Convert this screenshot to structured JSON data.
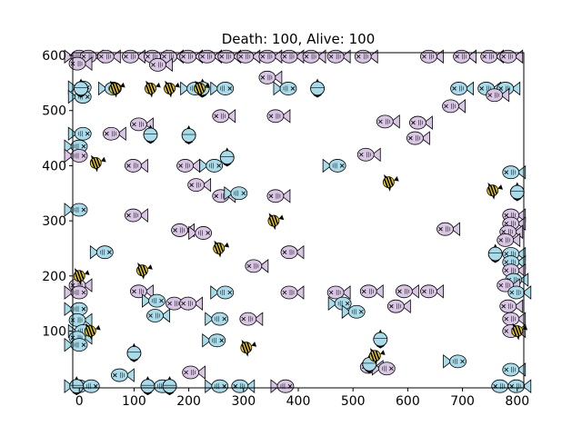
{
  "chart_data": {
    "type": "scatter",
    "title": "Death: 100, Alive: 100",
    "xlabel": "",
    "ylabel": "",
    "xlim": [
      -12,
      812
    ],
    "ylim": [
      -3,
      605
    ],
    "x_ticks": [
      0,
      100,
      200,
      300,
      400,
      500,
      600,
      700,
      800
    ],
    "y_ticks": [
      100,
      200,
      300,
      400,
      500,
      600
    ],
    "grid": false,
    "colors": {
      "fish_light_blue": "#a8dcea",
      "fish_lavender": "#d8c6e4",
      "angelfish_yellow": "#f0d000",
      "outline": "#000000"
    },
    "series": [
      {
        "marker": "fish",
        "points": [
          {
            "x": -2,
            "y": 598,
            "c": "p",
            "d": "l"
          },
          {
            "x": 18,
            "y": 598,
            "c": "p",
            "d": "r"
          },
          {
            "x": 50,
            "y": 598,
            "c": "p",
            "d": "r"
          },
          {
            "x": 95,
            "y": 598,
            "c": "p",
            "d": "r"
          },
          {
            "x": 135,
            "y": 598,
            "c": "p",
            "d": "r"
          },
          {
            "x": 165,
            "y": 598,
            "c": "p",
            "d": "r"
          },
          {
            "x": 200,
            "y": 598,
            "c": "p",
            "d": "r"
          },
          {
            "x": 235,
            "y": 598,
            "c": "p",
            "d": "r"
          },
          {
            "x": 270,
            "y": 598,
            "c": "p",
            "d": "r"
          },
          {
            "x": 305,
            "y": 598,
            "c": "p",
            "d": "r"
          },
          {
            "x": 345,
            "y": 598,
            "c": "p",
            "d": "r"
          },
          {
            "x": 385,
            "y": 598,
            "c": "p",
            "d": "r"
          },
          {
            "x": 425,
            "y": 598,
            "c": "p",
            "d": "r"
          },
          {
            "x": 470,
            "y": 598,
            "c": "p",
            "d": "r"
          },
          {
            "x": 520,
            "y": 598,
            "c": "p",
            "d": "r"
          },
          {
            "x": 640,
            "y": 598,
            "c": "p",
            "d": "r"
          },
          {
            "x": 700,
            "y": 598,
            "c": "p",
            "d": "r"
          },
          {
            "x": 750,
            "y": 598,
            "c": "p",
            "d": "r"
          },
          {
            "x": 785,
            "y": 598,
            "c": "p",
            "d": "r"
          },
          {
            "x": -2,
            "y": 585,
            "c": "p",
            "d": "r"
          },
          {
            "x": 145,
            "y": 583,
            "c": "p",
            "d": "r"
          },
          {
            "x": 345,
            "y": 560,
            "c": "p",
            "d": "r"
          },
          {
            "x": 5,
            "y": 542,
            "c": "b",
            "d": "l"
          },
          {
            "x": 60,
            "y": 540,
            "c": "b",
            "d": "l"
          },
          {
            "x": 210,
            "y": 540,
            "c": "b",
            "d": "l"
          },
          {
            "x": 265,
            "y": 540,
            "c": "b",
            "d": "l"
          },
          {
            "x": 380,
            "y": 540,
            "c": "b",
            "d": "l"
          },
          {
            "x": 695,
            "y": 540,
            "c": "b",
            "d": "r"
          },
          {
            "x": 745,
            "y": 540,
            "c": "b",
            "d": "r"
          },
          {
            "x": 780,
            "y": 540,
            "c": "b",
            "d": "r"
          },
          {
            "x": 5,
            "y": 525,
            "c": "b",
            "d": "l"
          },
          {
            "x": 680,
            "y": 508,
            "c": "p",
            "d": "r"
          },
          {
            "x": 760,
            "y": 528,
            "c": "p",
            "d": "r"
          },
          {
            "x": 260,
            "y": 490,
            "c": "p",
            "d": "r"
          },
          {
            "x": 360,
            "y": 490,
            "c": "p",
            "d": "r"
          },
          {
            "x": 620,
            "y": 478,
            "c": "p",
            "d": "r"
          },
          {
            "x": 560,
            "y": 480,
            "c": "p",
            "d": "r"
          },
          {
            "x": 110,
            "y": 475,
            "c": "p",
            "d": "r"
          },
          {
            "x": 5,
            "y": 458,
            "c": "b",
            "d": "l"
          },
          {
            "x": 60,
            "y": 458,
            "c": "p",
            "d": "r"
          },
          {
            "x": 615,
            "y": 450,
            "c": "p",
            "d": "r"
          },
          {
            "x": -2,
            "y": 435,
            "c": "b",
            "d": "l"
          },
          {
            "x": -2,
            "y": 418,
            "c": "p",
            "d": "l"
          },
          {
            "x": 525,
            "y": 420,
            "c": "p",
            "d": "r"
          },
          {
            "x": 100,
            "y": 400,
            "c": "p",
            "d": "r"
          },
          {
            "x": 195,
            "y": 400,
            "c": "p",
            "d": "r"
          },
          {
            "x": 245,
            "y": 400,
            "c": "b",
            "d": "l"
          },
          {
            "x": 470,
            "y": 400,
            "c": "b",
            "d": "l"
          },
          {
            "x": 790,
            "y": 388,
            "c": "b",
            "d": "r"
          },
          {
            "x": 215,
            "y": 365,
            "c": "p",
            "d": "r"
          },
          {
            "x": 260,
            "y": 345,
            "c": "p",
            "d": "r"
          },
          {
            "x": 290,
            "y": 350,
            "c": "b",
            "d": "l"
          },
          {
            "x": 360,
            "y": 345,
            "c": "p",
            "d": "r"
          },
          {
            "x": -2,
            "y": 320,
            "c": "b",
            "d": "l"
          },
          {
            "x": 100,
            "y": 310,
            "c": "p",
            "d": "r"
          },
          {
            "x": 790,
            "y": 310,
            "c": "p",
            "d": "r"
          },
          {
            "x": 790,
            "y": 295,
            "c": "p",
            "d": "r"
          },
          {
            "x": 785,
            "y": 280,
            "c": "p",
            "d": "r"
          },
          {
            "x": 185,
            "y": 283,
            "c": "p",
            "d": "r"
          },
          {
            "x": 225,
            "y": 278,
            "c": "p",
            "d": "l"
          },
          {
            "x": 670,
            "y": 285,
            "c": "p",
            "d": "r"
          },
          {
            "x": 780,
            "y": 265,
            "c": "p",
            "d": "r"
          },
          {
            "x": 45,
            "y": 243,
            "c": "b",
            "d": "l"
          },
          {
            "x": 385,
            "y": 243,
            "c": "p",
            "d": "r"
          },
          {
            "x": 790,
            "y": 240,
            "c": "b",
            "d": "r"
          },
          {
            "x": 790,
            "y": 225,
            "c": "b",
            "d": "r"
          },
          {
            "x": 320,
            "y": 218,
            "c": "p",
            "d": "r"
          },
          {
            "x": 790,
            "y": 210,
            "c": "p",
            "d": "r"
          },
          {
            "x": 795,
            "y": 193,
            "c": "b",
            "d": "r"
          },
          {
            "x": -2,
            "y": 183,
            "c": "p",
            "d": "r"
          },
          {
            "x": 780,
            "y": 183,
            "c": "p",
            "d": "r"
          },
          {
            "x": -2,
            "y": 170,
            "c": "p",
            "d": "l"
          },
          {
            "x": 110,
            "y": 172,
            "c": "p",
            "d": "r"
          },
          {
            "x": 265,
            "y": 170,
            "c": "b",
            "d": "l"
          },
          {
            "x": 385,
            "y": 170,
            "c": "p",
            "d": "r"
          },
          {
            "x": 470,
            "y": 170,
            "c": "p",
            "d": "r"
          },
          {
            "x": 530,
            "y": 172,
            "c": "p",
            "d": "r"
          },
          {
            "x": 595,
            "y": 172,
            "c": "p",
            "d": "r"
          },
          {
            "x": 640,
            "y": 172,
            "c": "p",
            "d": "r"
          },
          {
            "x": 800,
            "y": 170,
            "c": "b",
            "d": "r"
          },
          {
            "x": 140,
            "y": 155,
            "c": "b",
            "d": "l"
          },
          {
            "x": 175,
            "y": 150,
            "c": "p",
            "d": "r"
          },
          {
            "x": 200,
            "y": 150,
            "c": "p",
            "d": "r"
          },
          {
            "x": 480,
            "y": 150,
            "c": "b",
            "d": "l"
          },
          {
            "x": 580,
            "y": 145,
            "c": "p",
            "d": "r"
          },
          {
            "x": 785,
            "y": 145,
            "c": "p",
            "d": "r"
          },
          {
            "x": 140,
            "y": 128,
            "c": "b",
            "d": "r"
          },
          {
            "x": 255,
            "y": 122,
            "c": "b",
            "d": "l"
          },
          {
            "x": 310,
            "y": 122,
            "c": "p",
            "d": "r"
          },
          {
            "x": 505,
            "y": 135,
            "c": "b",
            "d": "l"
          },
          {
            "x": 790,
            "y": 122,
            "c": "p",
            "d": "r"
          },
          {
            "x": -2,
            "y": 140,
            "c": "b",
            "d": "l"
          },
          {
            "x": -2,
            "y": 120,
            "c": "b",
            "d": "r"
          },
          {
            "x": 5,
            "y": 100,
            "c": "b",
            "d": "l"
          },
          {
            "x": -2,
            "y": 88,
            "c": "b",
            "d": "r"
          },
          {
            "x": -2,
            "y": 75,
            "c": "b",
            "d": "l"
          },
          {
            "x": 250,
            "y": 83,
            "c": "b",
            "d": "l"
          },
          {
            "x": 790,
            "y": 100,
            "c": "p",
            "d": "r"
          },
          {
            "x": 690,
            "y": 45,
            "c": "b",
            "d": "l"
          },
          {
            "x": 530,
            "y": 35,
            "c": "p",
            "d": "r"
          },
          {
            "x": 560,
            "y": 32,
            "c": "p",
            "d": "l"
          },
          {
            "x": 790,
            "y": 30,
            "c": "b",
            "d": "r"
          },
          {
            "x": 75,
            "y": 20,
            "c": "b",
            "d": "r"
          },
          {
            "x": 205,
            "y": 25,
            "c": "p",
            "d": "r"
          },
          {
            "x": -2,
            "y": 0,
            "c": "b",
            "d": "l"
          },
          {
            "x": 20,
            "y": 0,
            "c": "b",
            "d": "l"
          },
          {
            "x": 255,
            "y": 0,
            "c": "b",
            "d": "l"
          },
          {
            "x": 295,
            "y": 0,
            "c": "b",
            "d": "r"
          },
          {
            "x": 375,
            "y": 0,
            "c": "p",
            "d": "l"
          },
          {
            "x": 770,
            "y": 0,
            "c": "b",
            "d": "r"
          },
          {
            "x": 800,
            "y": 0,
            "c": "b",
            "d": "r"
          },
          {
            "x": 150,
            "y": 0,
            "c": "b",
            "d": "l"
          }
        ]
      },
      {
        "marker": "pufferfish",
        "points": [
          {
            "x": 225,
            "y": 540
          },
          {
            "x": 435,
            "y": 540
          },
          {
            "x": 130,
            "y": 456
          },
          {
            "x": 200,
            "y": 455
          },
          {
            "x": 270,
            "y": 415
          },
          {
            "x": 800,
            "y": 352
          },
          {
            "x": 760,
            "y": 240
          },
          {
            "x": 100,
            "y": 60
          },
          {
            "x": 550,
            "y": 85
          },
          {
            "x": 530,
            "y": 40
          },
          {
            "x": 125,
            "y": 0
          },
          {
            "x": 165,
            "y": 0
          },
          {
            "x": -5,
            "y": 0
          },
          {
            "x": 3,
            "y": 540
          }
        ]
      },
      {
        "marker": "angelfish",
        "points": [
          {
            "x": 65,
            "y": 540
          },
          {
            "x": 130,
            "y": 540
          },
          {
            "x": 165,
            "y": 540
          },
          {
            "x": 20,
            "y": 100
          },
          {
            "x": 30,
            "y": 405
          },
          {
            "x": 565,
            "y": 370
          },
          {
            "x": 755,
            "y": 355
          },
          {
            "x": 355,
            "y": 300
          },
          {
            "x": 255,
            "y": 250
          },
          {
            "x": 115,
            "y": 210
          },
          {
            "x": 0,
            "y": 200
          },
          {
            "x": 305,
            "y": 70
          },
          {
            "x": 540,
            "y": 55
          },
          {
            "x": 800,
            "y": 100
          },
          {
            "x": 220,
            "y": 540
          }
        ]
      }
    ]
  }
}
